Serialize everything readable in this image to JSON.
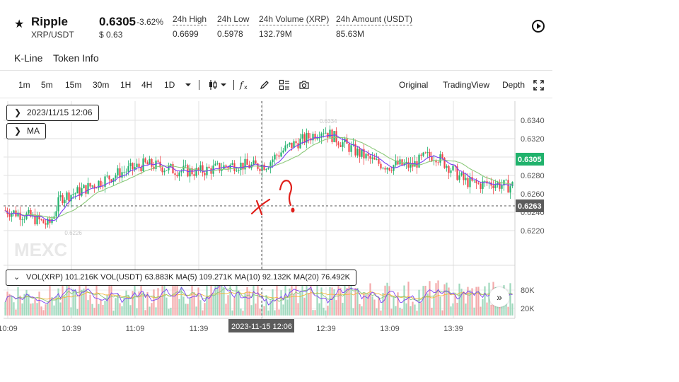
{
  "header": {
    "symbol": "Ripple",
    "pair": "XRP/USDT",
    "price": "0.6305",
    "change_pct": "-3.62%",
    "usd_price": "$ 0.63",
    "stats": [
      {
        "label": "24h High",
        "value": "0.6699"
      },
      {
        "label": "24h Low",
        "value": "0.5978"
      },
      {
        "label": "24h Volume (XRP)",
        "value": "132.79M"
      },
      {
        "label": "24h Amount (USDT)",
        "value": "85.63M"
      }
    ]
  },
  "tabs": [
    "K-Line",
    "Token Info"
  ],
  "toolbar": {
    "timeframes": [
      "1m",
      "5m",
      "15m",
      "30m",
      "1H",
      "4H",
      "1D"
    ],
    "views": [
      "Original",
      "TradingView",
      "Depth"
    ]
  },
  "overlays": {
    "crosshair_date": "2023/11/15 12:06",
    "indicator": "MA",
    "volume_legend": "VOL(XRP) 101.216K   VOL(USDT) 63.883K   MA(5) 109.271K   MA(10) 92.132K   MA(20) 76.492K",
    "watermark": "MEXC",
    "crosshair_time_label": "2023-11-15 12:06"
  },
  "colors": {
    "up": "#20b26c",
    "down": "#ef454a",
    "ma_short": "#7a3ff2",
    "ma_long": "#8cc97a",
    "last_price_badge": "#20b26c",
    "crosshair_badge": "#5c5c5c",
    "annotation": "#e0201b"
  },
  "chart_data": {
    "type": "candlestick",
    "title": "",
    "xlabel": "",
    "ylabel": "",
    "x_ticks": [
      "10:09",
      "10:39",
      "11:09",
      "11:39",
      "12:09",
      "12:39",
      "13:09",
      "13:39"
    ],
    "y_ticks": [
      "0.6220",
      "0.6240",
      "0.6260",
      "0.6280",
      "0.6300",
      "0.6320",
      "0.6340"
    ],
    "ylim": [
      0.6207,
      0.6345
    ],
    "last_price": "0.6305",
    "crosshair_price": "0.6263",
    "high_marker": "0.6334",
    "low_marker": "0.6226",
    "price_path": [
      [
        10.0,
        0.6242
      ],
      [
        10.17,
        0.6236
      ],
      [
        10.27,
        0.623
      ],
      [
        10.33,
        0.6226
      ],
      [
        10.42,
        0.6256
      ],
      [
        10.55,
        0.6262
      ],
      [
        10.7,
        0.6272
      ],
      [
        10.85,
        0.6282
      ],
      [
        10.97,
        0.6288
      ],
      [
        11.05,
        0.6292
      ],
      [
        11.17,
        0.629
      ],
      [
        11.27,
        0.6286
      ],
      [
        11.45,
        0.6284
      ],
      [
        11.6,
        0.6288
      ],
      [
        11.75,
        0.6292
      ],
      [
        11.87,
        0.629
      ],
      [
        11.98,
        0.6292
      ],
      [
        12.05,
        0.6302
      ],
      [
        12.15,
        0.6312
      ],
      [
        12.3,
        0.6322
      ],
      [
        12.4,
        0.633
      ],
      [
        12.52,
        0.6318
      ],
      [
        12.65,
        0.6306
      ],
      [
        12.8,
        0.6294
      ],
      [
        12.9,
        0.629
      ],
      [
        12.97,
        0.6292
      ],
      [
        13.07,
        0.629
      ],
      [
        13.17,
        0.63
      ],
      [
        13.25,
        0.6302
      ],
      [
        13.35,
        0.629
      ],
      [
        13.47,
        0.6274
      ],
      [
        13.57,
        0.627
      ],
      [
        13.68,
        0.6272
      ],
      [
        13.8,
        0.6268
      ],
      [
        13.85,
        0.627
      ]
    ],
    "volume_axis": {
      "ticks": [
        "20K",
        "80K"
      ],
      "ylim": [
        0,
        240
      ]
    },
    "annotations": [
      "handwritten x",
      "handwritten ?"
    ]
  }
}
